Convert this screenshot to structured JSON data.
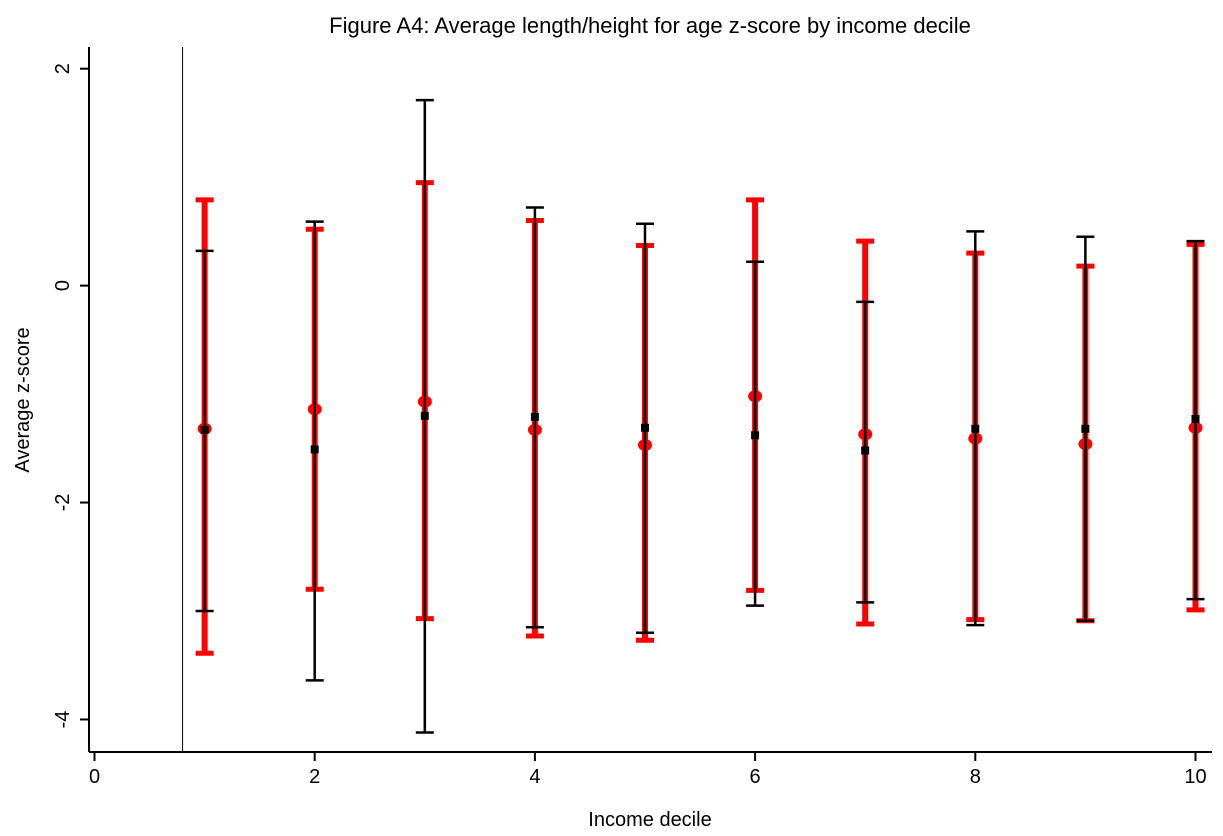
{
  "chart_data": {
    "type": "errorbar",
    "title": "Figure A4: Average length/height for age z-score by income decile",
    "xlabel": "Income decile",
    "ylabel": "Average z-score",
    "xlim": [
      -0.05,
      10.15
    ],
    "ylim": [
      -4.3,
      2.2
    ],
    "x_ticks": [
      0,
      2,
      4,
      6,
      8,
      10
    ],
    "y_ticks": [
      2,
      0,
      -2,
      -4
    ],
    "reference_line_x": 0.8,
    "grid": false,
    "legend": "none",
    "series": [
      {
        "color": "#ff0000",
        "style": "thick",
        "x": [
          1,
          2,
          3,
          4,
          5,
          6,
          7,
          8,
          9,
          10
        ],
        "mean": [
          -1.32,
          -1.14,
          -1.07,
          -1.33,
          -1.47,
          -1.02,
          -1.37,
          -1.41,
          -1.46,
          -1.31
        ],
        "lower": [
          -3.39,
          -2.8,
          -3.07,
          -3.23,
          -3.27,
          -2.81,
          -3.12,
          -3.08,
          -3.09,
          -2.99
        ],
        "upper": [
          0.79,
          0.52,
          0.95,
          0.6,
          0.37,
          0.79,
          0.41,
          0.3,
          0.18,
          0.38
        ]
      },
      {
        "color": "#000000",
        "style": "thin",
        "x": [
          1,
          2,
          3,
          4,
          5,
          6,
          7,
          8,
          9,
          10
        ],
        "mean": [
          -1.33,
          -1.51,
          -1.2,
          -1.21,
          -1.31,
          -1.38,
          -1.52,
          -1.32,
          -1.32,
          -1.23
        ],
        "lower": [
          -3.0,
          -3.64,
          -4.12,
          -3.15,
          -3.2,
          -2.95,
          -2.92,
          -3.13,
          -3.09,
          -2.89
        ],
        "upper": [
          0.32,
          0.59,
          1.71,
          0.72,
          0.57,
          0.22,
          -0.15,
          0.5,
          0.45,
          0.41
        ]
      }
    ]
  }
}
